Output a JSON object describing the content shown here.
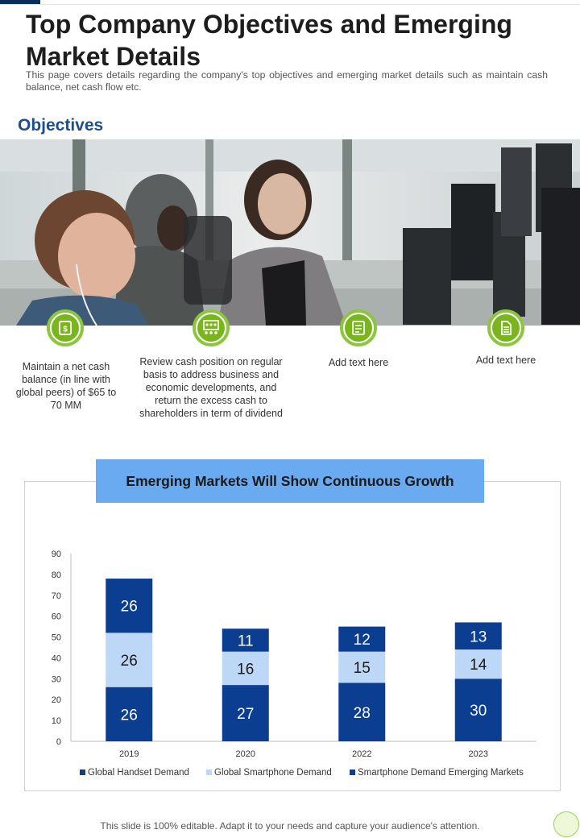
{
  "header": {
    "title": "Top Company Objectives and Emerging Market Details",
    "description": "This page covers details regarding the company's top objectives and emerging market details such as maintain cash balance, net cash flow etc."
  },
  "objectives": {
    "heading": "Objectives",
    "items": [
      {
        "icon": "cash-icon",
        "text": "Maintain a net cash balance (in line with global peers) of $65 to 70 MM"
      },
      {
        "icon": "team-presentation-icon",
        "text": "Review cash position on regular basis to address business and economic developments, and return the excess cash to shareholders in term of dividend"
      },
      {
        "icon": "checklist-icon",
        "text": "Add text here"
      },
      {
        "icon": "document-icon",
        "text": "Add text here"
      }
    ]
  },
  "chart_data": {
    "type": "bar",
    "stacked": true,
    "title": "Emerging Markets Will Show Continuous Growth",
    "categories": [
      "2019",
      "2020",
      "2022",
      "2023"
    ],
    "series": [
      {
        "name": "Global Handset Demand",
        "values": [
          26,
          27,
          28,
          30
        ],
        "color": "#0b3d91"
      },
      {
        "name": "Global Smartphone Demand",
        "values": [
          26,
          16,
          15,
          14
        ],
        "color": "#bdd7f6"
      },
      {
        "name": "Smartphone Demand Emerging Markets",
        "values": [
          26,
          11,
          12,
          13
        ],
        "color": "#0b3d91"
      }
    ],
    "ylim": [
      0,
      90
    ],
    "yticks": [
      0,
      10,
      20,
      30,
      40,
      50,
      60,
      70,
      80,
      90
    ],
    "legend": "bottom",
    "grid": false,
    "data_labels": true
  },
  "footer": {
    "text": "This slide is 100% editable. Adapt it to your needs and capture your audience's attention."
  },
  "colors": {
    "accent_green": "#7ab51d",
    "heading_blue": "#1f4e8c",
    "chart_title_bg": "#6aaaf0",
    "dark_navy": "#0b3d91",
    "light_blue": "#bdd7f6"
  }
}
